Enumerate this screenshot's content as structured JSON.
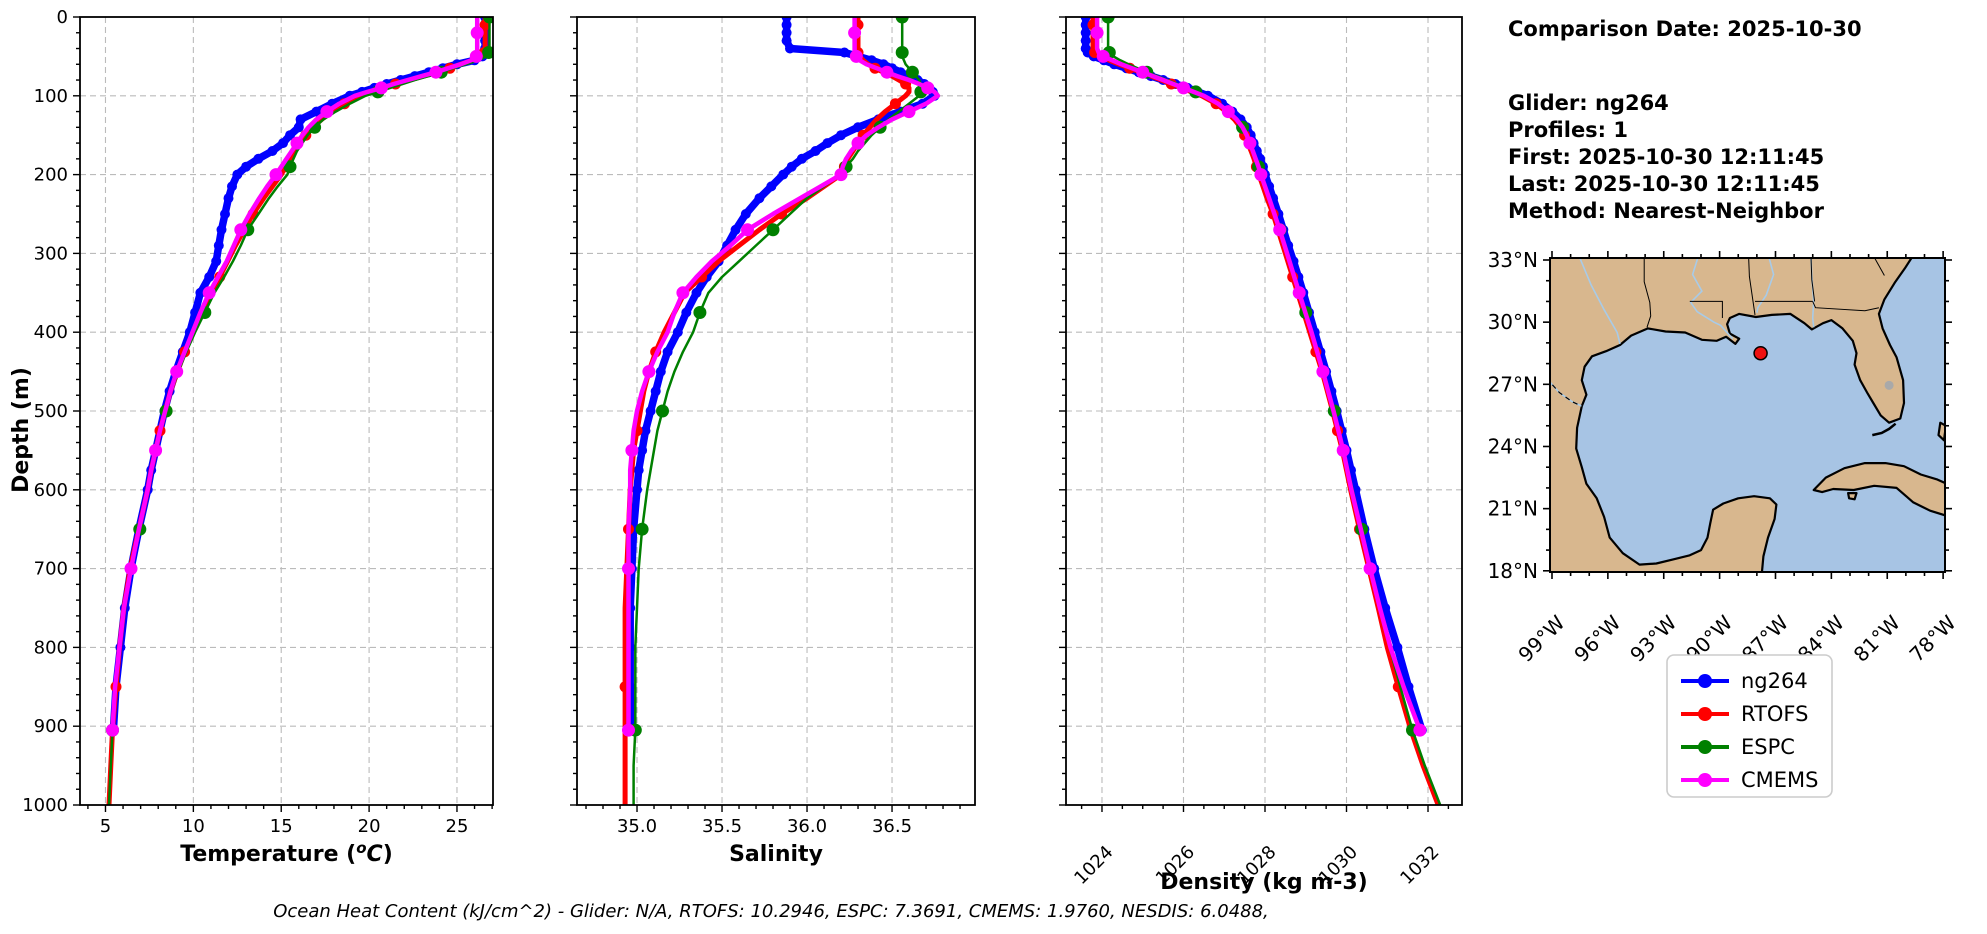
{
  "info_panel": {
    "comparison_date": "Comparison Date: 2025-10-30",
    "glider": "Glider: ng264",
    "profiles": "Profiles: 1",
    "first": "First: 2025-10-30 12:11:45",
    "last": "Last: 2025-10-30 12:11:45",
    "method": "Method: Nearest-Neighbor"
  },
  "caption": "Ocean Heat Content (kJ/cm^2) - Glider: N/A,  RTOFS: 10.2946,  ESPC: 7.3691,  CMEMS: 1.9760,  NESDIS: 6.0488,",
  "ylabel": "Depth (m)",
  "legend": {
    "entries": [
      {
        "label": "ng264",
        "color": "#0000ff"
      },
      {
        "label": "RTOFS",
        "color": "#ff0000"
      },
      {
        "label": "ESPC",
        "color": "#008000"
      },
      {
        "label": "CMEMS",
        "color": "#ff00ff"
      }
    ]
  },
  "map": {
    "lat_tick_labels": [
      "33°N",
      "30°N",
      "27°N",
      "24°N",
      "21°N",
      "18°N"
    ],
    "lon_tick_labels": [
      "99°W",
      "96°W",
      "93°W",
      "90°W",
      "87°W",
      "84°W",
      "81°W",
      "78°W"
    ],
    "land_color": "#d8b78e",
    "water_color": "#a7c4e4",
    "marker": {
      "lon": -87.8,
      "lat": 28.5,
      "color": "#ee1111"
    }
  },
  "chart_data": [
    {
      "type": "line",
      "xlabel": "Temperature (°C)",
      "xlabel_rich": {
        "prefix": "Temperature (",
        "sup": "o",
        "italic": "C",
        "suffix": ")"
      },
      "ylabel": "Depth (m)",
      "xlim": [
        3.55,
        27.05
      ],
      "ylim": [
        1000,
        0
      ],
      "xticks": [
        5,
        10,
        15,
        20,
        25
      ],
      "yticks": [
        0,
        100,
        200,
        300,
        400,
        500,
        600,
        700,
        800,
        900,
        1000
      ],
      "grid": true,
      "depth": [
        0,
        10,
        20,
        30,
        40,
        45,
        50,
        55,
        60,
        65,
        70,
        75,
        80,
        85,
        90,
        95,
        100,
        110,
        120,
        130,
        140,
        150,
        160,
        170,
        180,
        190,
        200,
        215,
        230,
        250,
        270,
        290,
        310,
        330,
        350,
        375,
        400,
        425,
        450,
        475,
        500,
        525,
        550,
        575,
        600,
        650,
        700,
        750,
        800,
        850,
        905,
        950,
        1000
      ],
      "series": [
        {
          "name": "ng264",
          "color": "#0000ff",
          "values": [
            26.6,
            26.6,
            26.6,
            26.6,
            26.6,
            26.6,
            26.45,
            26.0,
            25.0,
            24.2,
            23.4,
            22.6,
            21.8,
            21.0,
            20.3,
            19.6,
            18.9,
            17.9,
            17.0,
            16.1,
            16.0,
            15.5,
            15.1,
            14.5,
            13.7,
            13.0,
            12.5,
            12.2,
            12.0,
            11.8,
            11.6,
            11.45,
            11.3,
            10.9,
            10.4,
            10.1,
            9.8,
            9.4,
            9.0,
            8.65,
            8.35,
            8.1,
            7.85,
            7.6,
            7.4,
            6.9,
            6.45,
            6.1,
            5.85,
            5.6,
            5.45,
            null,
            null
          ]
        },
        {
          "name": "RTOFS",
          "color": "#ff0000",
          "values": [
            26.6,
            26.6,
            26.6,
            26.6,
            26.6,
            26.55,
            26.4,
            25.9,
            25.2,
            24.6,
            23.9,
            23.1,
            22.3,
            21.5,
            20.8,
            20.1,
            19.5,
            18.6,
            17.9,
            17.3,
            16.8,
            16.4,
            16.1,
            15.8,
            15.5,
            15.25,
            15.0,
            14.5,
            14.0,
            13.4,
            12.9,
            12.4,
            11.95,
            11.5,
            11.0,
            10.5,
            10.0,
            9.5,
            9.1,
            8.7,
            8.4,
            8.1,
            7.85,
            7.6,
            7.4,
            6.9,
            6.4,
            6.05,
            5.8,
            5.6,
            5.4,
            5.3,
            5.2
          ]
        },
        {
          "name": "ESPC",
          "color": "#008000",
          "values": [
            26.85,
            26.85,
            26.85,
            26.85,
            26.85,
            26.8,
            26.7,
            26.2,
            25.5,
            24.8,
            24.1,
            23.4,
            22.6,
            21.9,
            21.2,
            20.5,
            19.8,
            18.9,
            18.1,
            17.4,
            16.9,
            16.5,
            16.2,
            15.9,
            15.7,
            15.5,
            15.35,
            14.8,
            14.3,
            13.7,
            13.1,
            12.7,
            12.25,
            11.75,
            11.2,
            10.65,
            10.1,
            9.6,
            9.15,
            8.75,
            8.45,
            8.15,
            7.9,
            7.65,
            7.45,
            6.95,
            6.45,
            6.1,
            5.85,
            5.6,
            5.4,
            5.3,
            5.2
          ]
        },
        {
          "name": "CMEMS",
          "color": "#ff00ff",
          "values": [
            26.15,
            26.15,
            26.15,
            26.15,
            26.15,
            26.15,
            26.1,
            25.8,
            25.2,
            24.5,
            23.8,
            23.0,
            22.2,
            21.4,
            20.7,
            19.9,
            19.2,
            18.3,
            17.6,
            17.0,
            16.55,
            16.2,
            15.9,
            15.6,
            15.3,
            15.0,
            14.7,
            14.2,
            13.75,
            13.2,
            12.7,
            12.3,
            11.9,
            11.4,
            10.9,
            10.4,
            9.95,
            9.5,
            9.05,
            8.7,
            8.4,
            8.1,
            7.85,
            7.6,
            7.4,
            6.9,
            6.45,
            6.05,
            5.8,
            5.55,
            5.4,
            null,
            null
          ]
        }
      ]
    },
    {
      "type": "line",
      "xlabel": "Salinity",
      "ylabel": "Depth (m)",
      "xlim": [
        34.647,
        36.988
      ],
      "ylim": [
        1000,
        0
      ],
      "xticks": [
        35.0,
        35.5,
        36.0,
        36.5
      ],
      "yticks": [
        0,
        100,
        200,
        300,
        400,
        500,
        600,
        700,
        800,
        900,
        1000
      ],
      "grid": true,
      "depth": [
        0,
        10,
        20,
        30,
        40,
        45,
        50,
        55,
        60,
        65,
        70,
        75,
        80,
        85,
        90,
        95,
        100,
        110,
        120,
        130,
        140,
        150,
        160,
        170,
        180,
        190,
        200,
        215,
        230,
        250,
        270,
        290,
        310,
        330,
        350,
        375,
        400,
        425,
        450,
        475,
        500,
        525,
        550,
        575,
        600,
        650,
        700,
        750,
        800,
        850,
        905,
        950,
        1000
      ],
      "series": [
        {
          "name": "ng264",
          "color": "#0000ff",
          "values": [
            35.88,
            35.88,
            35.88,
            35.88,
            35.9,
            36.22,
            36.3,
            36.38,
            36.45,
            36.5,
            36.55,
            36.6,
            36.65,
            36.69,
            36.72,
            36.74,
            36.75,
            36.68,
            36.55,
            36.42,
            36.3,
            36.2,
            36.12,
            36.05,
            35.97,
            35.91,
            35.86,
            35.79,
            35.72,
            35.64,
            35.58,
            35.53,
            35.48,
            35.41,
            35.35,
            35.29,
            35.24,
            35.18,
            35.14,
            35.11,
            35.08,
            35.05,
            35.03,
            35.01,
            35.0,
            34.98,
            34.97,
            34.96,
            34.96,
            34.96,
            34.97,
            null,
            null
          ]
        },
        {
          "name": "RTOFS",
          "color": "#ff0000",
          "values": [
            36.3,
            36.3,
            36.3,
            36.3,
            36.3,
            36.3,
            36.31,
            36.33,
            36.36,
            36.4,
            36.45,
            36.5,
            36.54,
            36.58,
            36.6,
            36.6,
            36.58,
            36.52,
            36.46,
            36.41,
            36.37,
            36.33,
            36.3,
            36.27,
            36.24,
            36.22,
            36.2,
            36.1,
            36.0,
            35.85,
            35.72,
            35.6,
            35.48,
            35.38,
            35.28,
            35.22,
            35.16,
            35.11,
            35.07,
            35.04,
            35.02,
            35.0,
            34.98,
            34.97,
            34.96,
            34.95,
            34.94,
            34.93,
            34.93,
            34.93,
            34.93,
            34.93,
            34.93
          ]
        },
        {
          "name": "ESPC",
          "color": "#008000",
          "values": [
            36.56,
            36.56,
            36.56,
            36.56,
            36.56,
            36.56,
            36.56,
            36.57,
            36.58,
            36.6,
            36.62,
            36.64,
            36.66,
            36.67,
            36.68,
            36.67,
            36.66,
            36.6,
            36.54,
            36.48,
            36.43,
            36.38,
            36.34,
            36.3,
            36.27,
            36.23,
            36.2,
            36.1,
            36.0,
            35.9,
            35.8,
            35.7,
            35.6,
            35.5,
            35.42,
            35.37,
            35.33,
            35.27,
            35.22,
            35.18,
            35.15,
            35.12,
            35.1,
            35.08,
            35.06,
            35.03,
            35.01,
            35.0,
            34.99,
            34.99,
            34.99,
            34.98,
            34.98
          ]
        },
        {
          "name": "CMEMS",
          "color": "#ff00ff",
          "values": [
            36.28,
            36.28,
            36.28,
            36.28,
            36.28,
            36.28,
            36.29,
            36.31,
            36.35,
            36.41,
            36.47,
            36.53,
            36.6,
            36.66,
            36.71,
            36.75,
            36.77,
            36.7,
            36.6,
            36.5,
            36.42,
            36.35,
            36.3,
            36.26,
            36.23,
            36.21,
            36.2,
            36.08,
            35.96,
            35.8,
            35.65,
            35.55,
            35.44,
            35.35,
            35.27,
            35.22,
            35.18,
            35.12,
            35.07,
            35.03,
            35.0,
            34.98,
            34.97,
            34.96,
            34.96,
            34.95,
            34.95,
            34.95,
            34.95,
            34.95,
            34.95,
            null,
            null
          ]
        }
      ]
    },
    {
      "type": "line",
      "xlabel": "Density (kg m-3)",
      "ylabel": "Depth (m)",
      "xlim": [
        1023.117,
        1032.834
      ],
      "ylim": [
        1000,
        0
      ],
      "xticks": [
        1024,
        1026,
        1028,
        1030,
        1032
      ],
      "yticks": [
        0,
        100,
        200,
        300,
        400,
        500,
        600,
        700,
        800,
        900,
        1000
      ],
      "grid": true,
      "depth": [
        0,
        10,
        20,
        30,
        40,
        45,
        50,
        55,
        60,
        65,
        70,
        75,
        80,
        85,
        90,
        95,
        100,
        110,
        120,
        130,
        140,
        150,
        160,
        170,
        180,
        190,
        200,
        215,
        230,
        250,
        270,
        290,
        310,
        330,
        350,
        375,
        400,
        425,
        450,
        475,
        500,
        525,
        550,
        575,
        600,
        650,
        700,
        750,
        800,
        850,
        905,
        950,
        1000
      ],
      "series": [
        {
          "name": "ng264",
          "color": "#0000ff",
          "values": [
            1023.6,
            1023.6,
            1023.6,
            1023.6,
            1023.6,
            1023.65,
            1023.8,
            1024.05,
            1024.3,
            1024.6,
            1024.9,
            1025.2,
            1025.5,
            1025.8,
            1026.1,
            1026.35,
            1026.6,
            1026.95,
            1027.2,
            1027.4,
            1027.55,
            1027.65,
            1027.72,
            1027.8,
            1027.88,
            1027.95,
            1028.0,
            1028.1,
            1028.2,
            1028.33,
            1028.45,
            1028.57,
            1028.7,
            1028.82,
            1028.94,
            1029.08,
            1029.22,
            1029.36,
            1029.5,
            1029.63,
            1029.76,
            1029.88,
            1030.0,
            1030.11,
            1030.22,
            1030.44,
            1030.68,
            1030.95,
            1031.25,
            1031.52,
            1031.85,
            null,
            null
          ]
        },
        {
          "name": "RTOFS",
          "color": "#ff0000",
          "values": [
            1023.78,
            1023.78,
            1023.78,
            1023.78,
            1023.78,
            1023.82,
            1023.95,
            1024.18,
            1024.42,
            1024.68,
            1024.95,
            1025.2,
            1025.45,
            1025.7,
            1025.95,
            1026.2,
            1026.45,
            1026.8,
            1027.05,
            1027.25,
            1027.4,
            1027.5,
            1027.58,
            1027.66,
            1027.73,
            1027.79,
            1027.85,
            1027.95,
            1028.05,
            1028.2,
            1028.32,
            1028.44,
            1028.56,
            1028.68,
            1028.8,
            1028.95,
            1029.1,
            1029.25,
            1029.4,
            1029.53,
            1029.66,
            1029.78,
            1029.9,
            1030.0,
            1030.1,
            1030.32,
            1030.55,
            1030.78,
            1031.0,
            1031.27,
            1031.58,
            1031.88,
            1032.25
          ]
        },
        {
          "name": "ESPC",
          "color": "#008000",
          "values": [
            1024.15,
            1024.15,
            1024.15,
            1024.15,
            1024.15,
            1024.18,
            1024.28,
            1024.45,
            1024.65,
            1024.87,
            1025.1,
            1025.35,
            1025.6,
            1025.85,
            1026.08,
            1026.3,
            1026.52,
            1026.87,
            1027.1,
            1027.3,
            1027.45,
            1027.55,
            1027.63,
            1027.7,
            1027.77,
            1027.84,
            1027.9,
            1028.0,
            1028.1,
            1028.24,
            1028.37,
            1028.49,
            1028.61,
            1028.73,
            1028.85,
            1029.0,
            1029.15,
            1029.3,
            1029.44,
            1029.57,
            1029.7,
            1029.82,
            1029.93,
            1030.04,
            1030.15,
            1030.37,
            1030.6,
            1030.83,
            1031.06,
            1031.32,
            1031.62,
            1031.92,
            1032.3
          ]
        },
        {
          "name": "CMEMS",
          "color": "#ff00ff",
          "values": [
            1023.88,
            1023.88,
            1023.88,
            1023.88,
            1023.88,
            1023.92,
            1024.03,
            1024.25,
            1024.48,
            1024.73,
            1025.0,
            1025.25,
            1025.5,
            1025.75,
            1026.0,
            1026.25,
            1026.5,
            1026.85,
            1027.1,
            1027.3,
            1027.45,
            1027.55,
            1027.63,
            1027.7,
            1027.77,
            1027.84,
            1027.9,
            1028.0,
            1028.1,
            1028.23,
            1028.36,
            1028.48,
            1028.6,
            1028.72,
            1028.84,
            1028.99,
            1029.14,
            1029.28,
            1029.42,
            1029.55,
            1029.68,
            1029.8,
            1029.92,
            1030.02,
            1030.12,
            1030.35,
            1030.58,
            1030.82,
            1031.08,
            1031.4,
            1031.8,
            null,
            null
          ]
        }
      ]
    }
  ]
}
